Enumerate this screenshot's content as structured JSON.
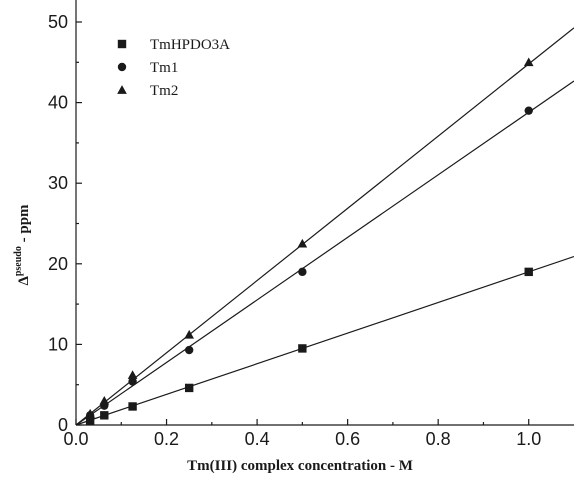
{
  "chart_data": {
    "type": "scatter",
    "xlabel": "Tm(III) complex concentration - M",
    "ylabel_main": "Δ",
    "ylabel_sup": "pseudo",
    "ylabel_suffix": " - ppm",
    "xlim": [
      0.0,
      1.1
    ],
    "ylim": [
      0,
      50
    ],
    "xticks": [
      0.0,
      0.2,
      0.4,
      0.6,
      0.8,
      1.0
    ],
    "xtick_labels": [
      "0.0",
      "0.2",
      "0.4",
      "0.6",
      "0.8",
      "1.0"
    ],
    "yticks": [
      0,
      10,
      20,
      30,
      40,
      50
    ],
    "ytick_labels": [
      "0",
      "10",
      "20",
      "30",
      "40",
      "50"
    ],
    "grid": false,
    "legend_position": "top-left",
    "series": [
      {
        "name": "TmHPDO3A",
        "marker": "square",
        "x": [
          0.03125,
          0.0625,
          0.125,
          0.25,
          0.5,
          1.0
        ],
        "y": [
          0.5,
          1.2,
          2.3,
          4.6,
          9.5,
          19.0
        ],
        "fit_slope": 19.0
      },
      {
        "name": "Tm1",
        "marker": "circle",
        "x": [
          0.03125,
          0.0625,
          0.125,
          0.25,
          0.5,
          1.0
        ],
        "y": [
          1.2,
          2.4,
          5.4,
          9.3,
          19.0,
          39.0
        ],
        "fit_slope": 38.8
      },
      {
        "name": "Tm2",
        "marker": "triangle",
        "x": [
          0.03125,
          0.0625,
          0.125,
          0.25,
          0.5,
          1.0
        ],
        "y": [
          1.4,
          3.0,
          6.2,
          11.2,
          22.5,
          45.0
        ],
        "fit_slope": 44.8
      }
    ]
  }
}
